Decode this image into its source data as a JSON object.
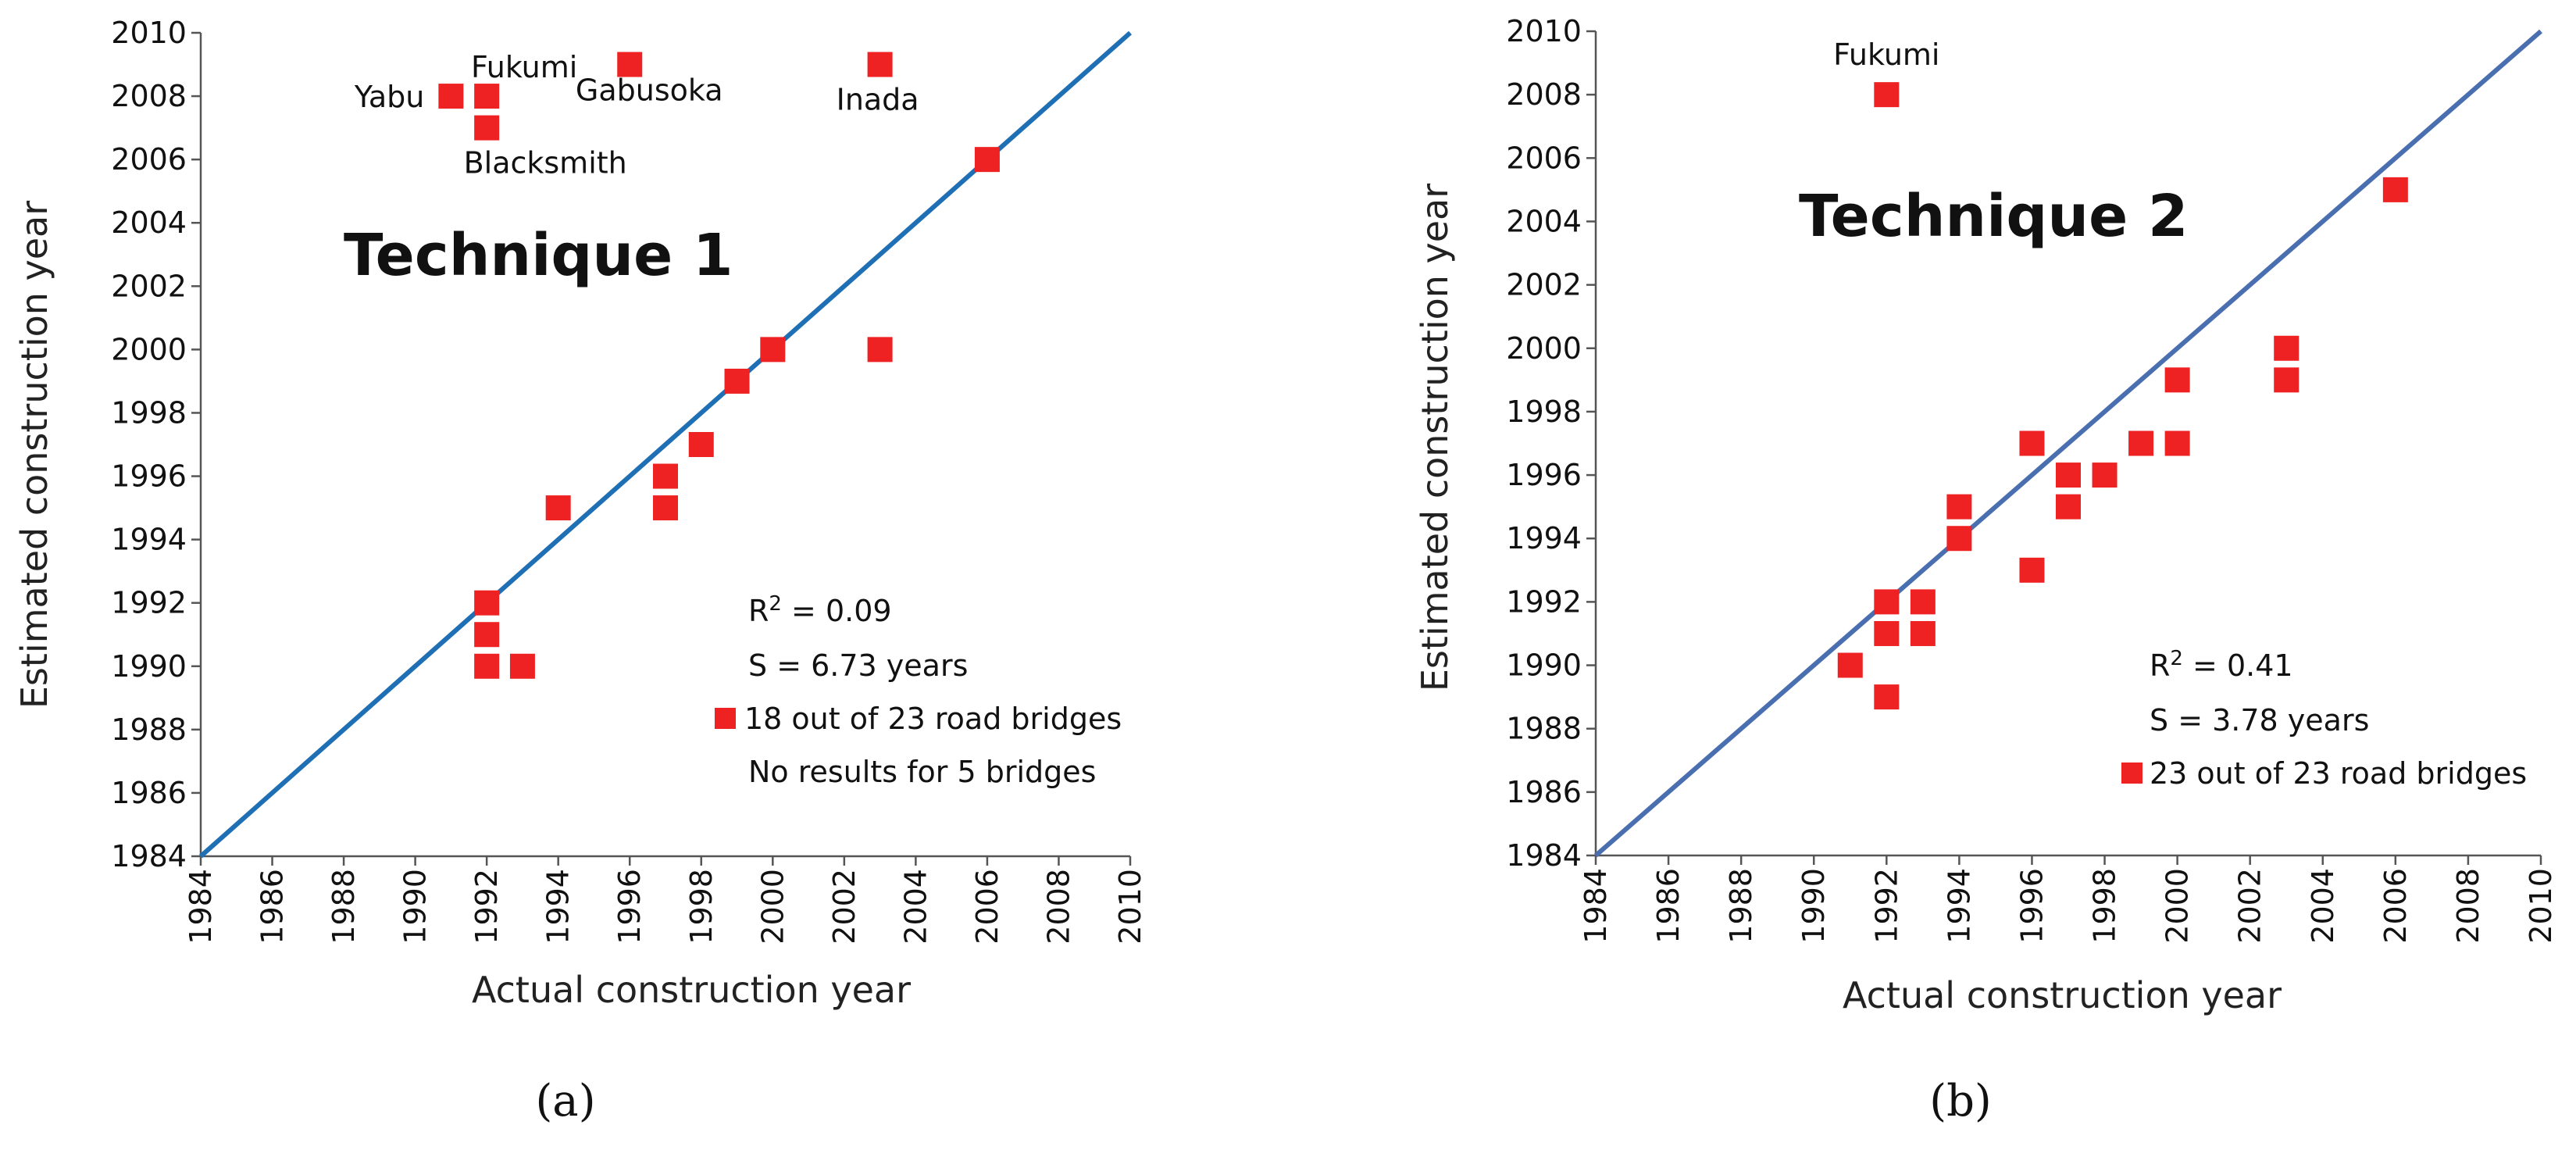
{
  "chart_data": [
    {
      "type": "scatter",
      "panel_caption": "(a)",
      "title": "Technique 1",
      "xlabel": "Actual construction year",
      "ylabel": "Estimated construction year",
      "xlim": [
        1984,
        2010
      ],
      "ylim": [
        1984,
        2010
      ],
      "xticks": [
        "1984",
        "1986",
        "1988",
        "1990",
        "1992",
        "1994",
        "1996",
        "1998",
        "2000",
        "2002",
        "2004",
        "2006",
        "2008",
        "2010"
      ],
      "yticks": [
        "1984",
        "1986",
        "1988",
        "1990",
        "1992",
        "1994",
        "1996",
        "1998",
        "2000",
        "2002",
        "2004",
        "2006",
        "2008",
        "2010"
      ],
      "reference_line": {
        "from": [
          1984,
          1984
        ],
        "to": [
          2010,
          2010
        ],
        "color": "#1f6fb5"
      },
      "marker_color": "#ee2222",
      "points": [
        {
          "x": 1991,
          "y": 2008
        },
        {
          "x": 1992,
          "y": 2008
        },
        {
          "x": 1992,
          "y": 2007
        },
        {
          "x": 1996,
          "y": 2009
        },
        {
          "x": 2003,
          "y": 2009
        },
        {
          "x": 2006,
          "y": 2006
        },
        {
          "x": 2000,
          "y": 2000
        },
        {
          "x": 2003,
          "y": 2000
        },
        {
          "x": 1999,
          "y": 1999
        },
        {
          "x": 1998,
          "y": 1997
        },
        {
          "x": 1997,
          "y": 1996
        },
        {
          "x": 1997,
          "y": 1995
        },
        {
          "x": 1994,
          "y": 1995
        },
        {
          "x": 1992,
          "y": 1992
        },
        {
          "x": 1992,
          "y": 1991
        },
        {
          "x": 1992,
          "y": 1990
        },
        {
          "x": 1993,
          "y": 1990
        }
      ],
      "point_labels": [
        {
          "text": "Yabu",
          "x": 1991,
          "y": 2008,
          "anchor": "left"
        },
        {
          "text": "Fukumi",
          "x": 1992,
          "y": 2008,
          "anchor": "above"
        },
        {
          "text": "Blacksmith",
          "x": 1992,
          "y": 2007,
          "anchor": "below"
        },
        {
          "text": "Gabusoka",
          "x": 1996,
          "y": 2009,
          "anchor": "below"
        },
        {
          "text": "Inada",
          "x": 2003,
          "y": 2009,
          "anchor": "below"
        }
      ],
      "stats": {
        "r2_prefix": "R",
        "r2_sup": "2",
        "r2_value": " = 0.09",
        "s_text": "S = 6.73 years",
        "legend_text": "18 out of 23 road bridges",
        "note": "No results for 5 bridges"
      }
    },
    {
      "type": "scatter",
      "panel_caption": "(b)",
      "title": "Technique 2",
      "xlabel": "Actual construction year",
      "ylabel": "Estimated construction year",
      "xlim": [
        1984,
        2010
      ],
      "ylim": [
        1984,
        2010
      ],
      "xticks": [
        "1984",
        "1986",
        "1988",
        "1990",
        "1992",
        "1994",
        "1996",
        "1998",
        "2000",
        "2002",
        "2004",
        "2006",
        "2008",
        "2010"
      ],
      "yticks": [
        "1984",
        "1986",
        "1988",
        "1990",
        "1992",
        "1994",
        "1996",
        "1998",
        "2000",
        "2002",
        "2004",
        "2006",
        "2008",
        "2010"
      ],
      "reference_line": {
        "from": [
          1984,
          1984
        ],
        "to": [
          2010,
          2010
        ],
        "color": "#4a6fb0"
      },
      "marker_color": "#ee2222",
      "points": [
        {
          "x": 1992,
          "y": 2008
        },
        {
          "x": 2006,
          "y": 2005
        },
        {
          "x": 2003,
          "y": 2000
        },
        {
          "x": 2003,
          "y": 1999
        },
        {
          "x": 2000,
          "y": 1999
        },
        {
          "x": 2000,
          "y": 1997
        },
        {
          "x": 1999,
          "y": 1997
        },
        {
          "x": 1998,
          "y": 1996
        },
        {
          "x": 1997,
          "y": 1996
        },
        {
          "x": 1997,
          "y": 1995
        },
        {
          "x": 1996,
          "y": 1997
        },
        {
          "x": 1996,
          "y": 1993
        },
        {
          "x": 1994,
          "y": 1995
        },
        {
          "x": 1994,
          "y": 1994
        },
        {
          "x": 1993,
          "y": 1992
        },
        {
          "x": 1993,
          "y": 1991
        },
        {
          "x": 1992,
          "y": 1992
        },
        {
          "x": 1992,
          "y": 1991
        },
        {
          "x": 1992,
          "y": 1989
        },
        {
          "x": 1991,
          "y": 1990
        }
      ],
      "point_labels": [
        {
          "text": "Fukumi",
          "x": 1992,
          "y": 2008,
          "anchor": "above"
        }
      ],
      "stats": {
        "r2_prefix": "R",
        "r2_sup": "2",
        "r2_value": " = 0.41",
        "s_text": "S = 3.78 years",
        "legend_text": "23 out of 23 road bridges",
        "note": ""
      }
    }
  ]
}
